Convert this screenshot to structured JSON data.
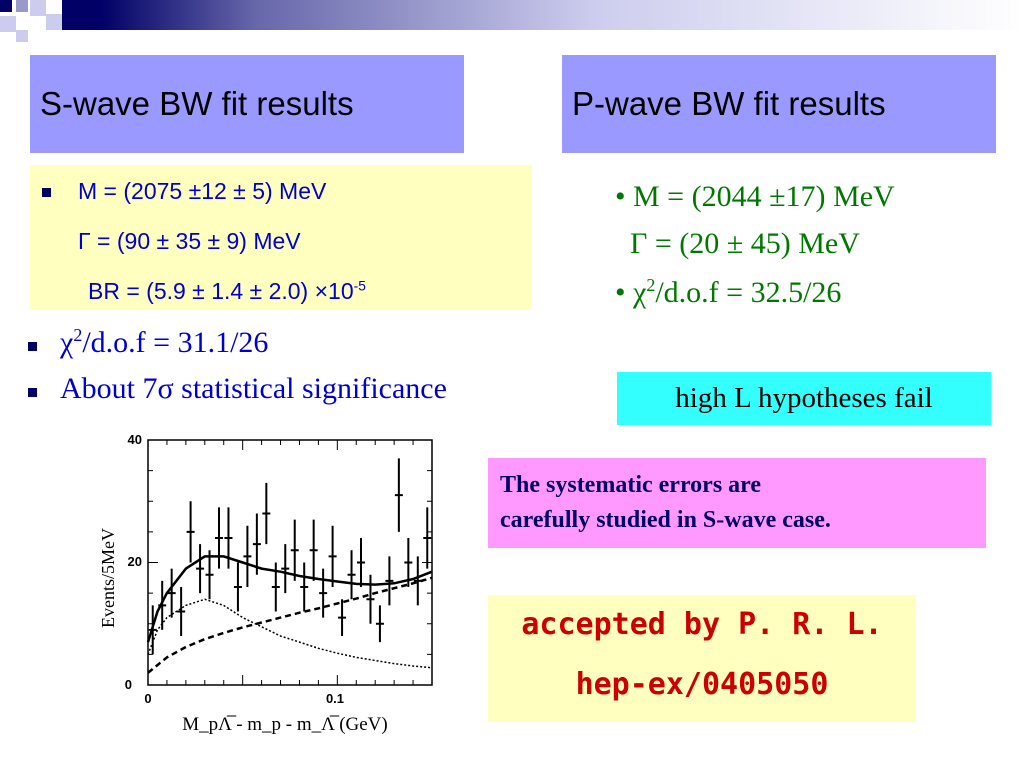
{
  "s_wave": {
    "title": "S-wave BW fit results",
    "mass_line": "M = (2075 ±12 ± 5) MeV",
    "width_line": "Γ = (90 ± 35 ±  9) MeV",
    "br_prefix": "BR = (5.9 ± 1.4 ± 2.0) ×10",
    "br_exp": "-5",
    "chi_sym": "χ",
    "chi_exp": "2",
    "chi_rest": "/d.o.f = 31.1/26",
    "significance": "About 7σ statistical significance"
  },
  "p_wave": {
    "title": "P-wave BW fit results",
    "mass_line": "• M = (2044 ±17) MeV",
    "width_line": "Γ = (20 ± 45) MeV",
    "chi_prefix": "• χ",
    "chi_exp": "2",
    "chi_rest": "/d.o.f = 32.5/26"
  },
  "high_l": "high L hypotheses fail",
  "systematics": {
    "line1": "The systematic errors are",
    "line2": "carefully studied in S-wave case."
  },
  "accepted": {
    "line1": "accepted by P. R. L.",
    "line2": "hep-ex/0405050"
  },
  "chart_data": {
    "type": "scatter",
    "ylabel": "Events/5MeV",
    "xlabel": "M_pΛ̅ - m_p - m_Λ̅ (GeV)",
    "xlim": [
      0,
      0.15
    ],
    "ylim": [
      0,
      40
    ],
    "y_ticks": [
      "0",
      "20",
      "40"
    ],
    "x_ticks": [
      "0",
      "0.1"
    ],
    "points": {
      "x": [
        0.0025,
        0.0075,
        0.0125,
        0.0175,
        0.0225,
        0.0275,
        0.0325,
        0.0375,
        0.0425,
        0.0475,
        0.0525,
        0.0575,
        0.0625,
        0.0675,
        0.0725,
        0.0775,
        0.0825,
        0.0875,
        0.0925,
        0.0975,
        0.1025,
        0.1075,
        0.1125,
        0.1175,
        0.1225,
        0.1275,
        0.1325,
        0.1375,
        0.1425,
        0.1475
      ],
      "y": [
        9,
        13,
        15,
        12,
        25,
        19,
        18,
        24,
        24,
        16,
        21,
        23,
        28,
        16,
        19,
        22,
        16,
        22,
        15,
        21,
        11,
        18,
        20,
        14,
        10,
        17,
        31,
        20,
        17,
        24
      ],
      "err": [
        4,
        4,
        4,
        4,
        5,
        4,
        4,
        5,
        5,
        4,
        5,
        5,
        5,
        4,
        4,
        5,
        4,
        5,
        4,
        5,
        3,
        4,
        4,
        4,
        3,
        4,
        6,
        4,
        4,
        5
      ]
    },
    "fit_total": {
      "x": [
        0.0,
        0.005,
        0.01,
        0.02,
        0.03,
        0.04,
        0.05,
        0.06,
        0.07,
        0.08,
        0.09,
        0.1,
        0.11,
        0.12,
        0.13,
        0.14,
        0.15
      ],
      "y": [
        7,
        12,
        15,
        19,
        21,
        21,
        20,
        19,
        18.5,
        17.8,
        17.3,
        16.9,
        16.5,
        16.4,
        16.6,
        17.3,
        18.5
      ]
    },
    "fit_signal": {
      "x": [
        0.0,
        0.005,
        0.01,
        0.02,
        0.03,
        0.04,
        0.05,
        0.06,
        0.07,
        0.08,
        0.09,
        0.1,
        0.11,
        0.12,
        0.13,
        0.14,
        0.15
      ],
      "y": [
        5,
        9,
        11,
        13,
        14,
        13,
        11,
        9.5,
        8,
        7,
        6,
        5.2,
        4.5,
        4,
        3.5,
        3.1,
        2.8
      ]
    },
    "fit_background": {
      "x": [
        0.0,
        0.01,
        0.02,
        0.03,
        0.04,
        0.05,
        0.06,
        0.07,
        0.08,
        0.09,
        0.1,
        0.11,
        0.12,
        0.13,
        0.14,
        0.15
      ],
      "y": [
        2,
        4.5,
        6.2,
        7.5,
        8.5,
        9.4,
        10.2,
        11,
        11.8,
        12.5,
        13.3,
        14.1,
        15,
        15.8,
        16.6,
        17.5
      ]
    }
  }
}
